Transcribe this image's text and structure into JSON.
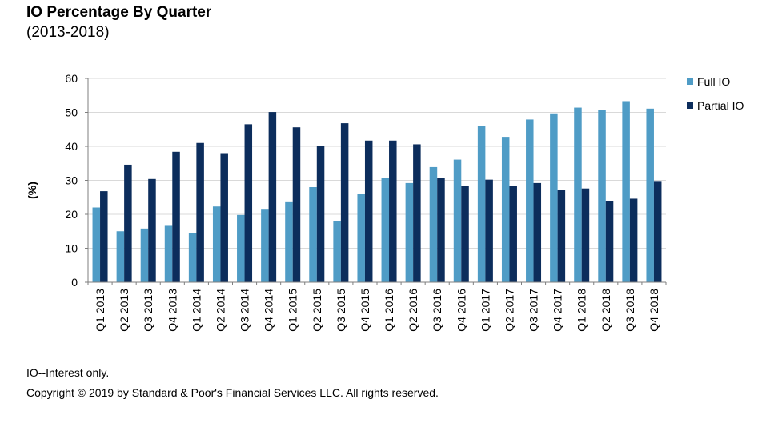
{
  "title": "IO Percentage By Quarter",
  "subtitle": "(2013-2018)",
  "footnote": "IO--Interest only.",
  "copyright": "Copyright © 2019 by Standard & Poor's Financial Services LLC. All rights reserved.",
  "colors": {
    "full_io": "#4f9cc6",
    "partial_io": "#0c2d5c",
    "grid": "#d9d9d9",
    "axis": "#7f7f7f"
  },
  "chart_data": {
    "type": "bar",
    "ylabel": "(%)",
    "ylim": [
      0,
      60
    ],
    "yticks": [
      0,
      10,
      20,
      30,
      40,
      50,
      60
    ],
    "grid": true,
    "legend": "right",
    "categories": [
      "Q1 2013",
      "Q2 2013",
      "Q3 2013",
      "Q4 2013",
      "Q1 2014",
      "Q2 2014",
      "Q3 2014",
      "Q4 2014",
      "Q1 2015",
      "Q2 2015",
      "Q3 2015",
      "Q4 2015",
      "Q1 2016",
      "Q2 2016",
      "Q3 2016",
      "Q4 2016",
      "Q1 2017",
      "Q2 2017",
      "Q3 2017",
      "Q4 2017",
      "Q1 2018",
      "Q2 2018",
      "Q3 2018",
      "Q4 2018"
    ],
    "series": [
      {
        "name": "Full IO",
        "values": [
          22,
          15,
          15.8,
          16.6,
          14.5,
          22.3,
          19.8,
          21.6,
          23.8,
          28,
          17.9,
          26,
          30.6,
          29.2,
          33.9,
          36.1,
          46.1,
          42.8,
          47.9,
          49.7,
          51.4,
          50.8,
          53.3,
          51.1
        ]
      },
      {
        "name": "Partial IO",
        "values": [
          26.8,
          34.6,
          30.4,
          38.4,
          41,
          38,
          46.5,
          50.1,
          45.6,
          40.1,
          46.8,
          41.7,
          41.7,
          40.6,
          30.7,
          28.4,
          30.2,
          28.3,
          29.2,
          27.2,
          27.6,
          24,
          24.6,
          29.8
        ]
      }
    ]
  }
}
